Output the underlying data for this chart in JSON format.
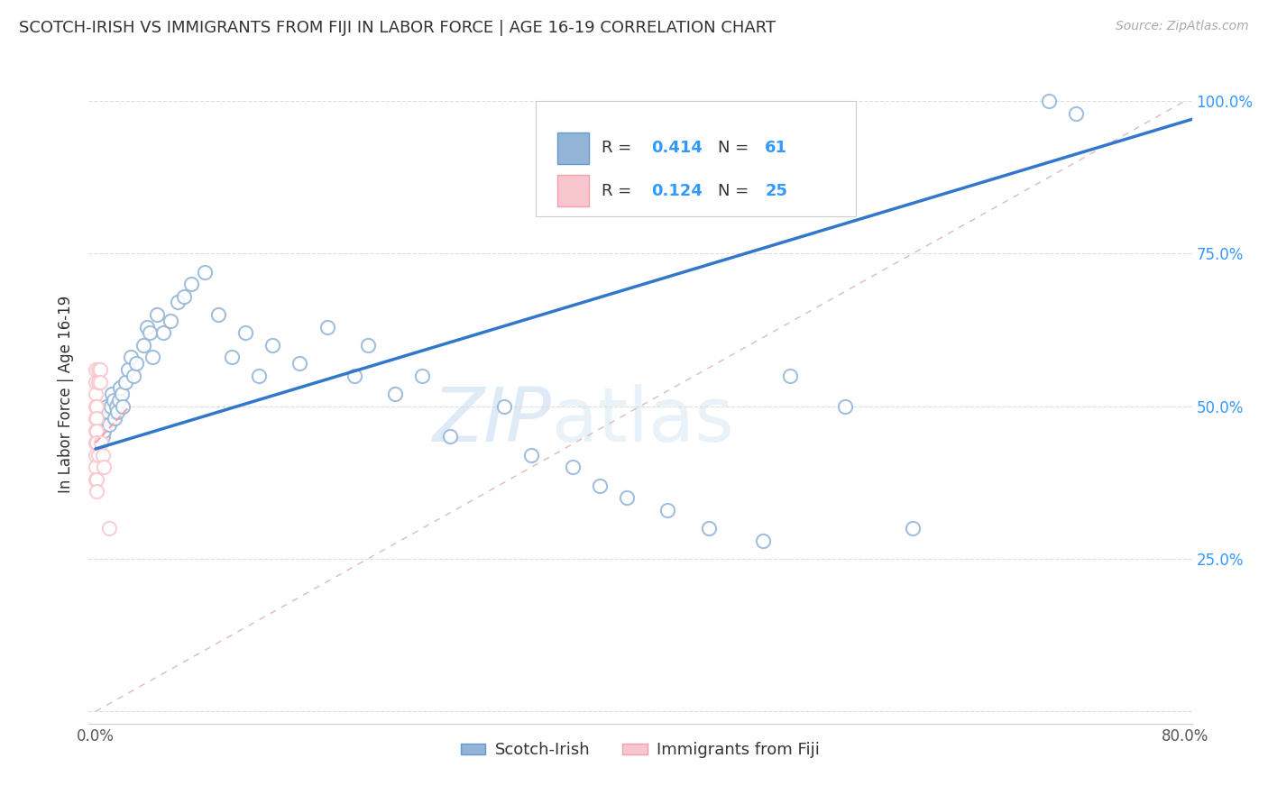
{
  "title": "SCOTCH-IRISH VS IMMIGRANTS FROM FIJI IN LABOR FORCE | AGE 16-19 CORRELATION CHART",
  "source": "Source: ZipAtlas.com",
  "ylabel": "In Labor Force | Age 16-19",
  "watermark": "ZIPatlas",
  "legend1_R": "0.414",
  "legend1_N": "61",
  "legend2_R": "0.124",
  "legend2_N": "25",
  "scotch_irish_color": "#92B4D7",
  "scotch_irish_edge_color": "#6699CC",
  "fiji_color": "#F9C6CE",
  "fiji_edge_color": "#F4A0AE",
  "scotch_irish_line_color": "#3377CC",
  "fiji_line_color": "#F4A0AE",
  "ref_line_color": "#DDBBBB",
  "xlim": [
    -0.005,
    0.805
  ],
  "ylim": [
    -0.02,
    1.06
  ],
  "xtick_positions": [
    0.0,
    0.1,
    0.2,
    0.3,
    0.4,
    0.5,
    0.6,
    0.7,
    0.8
  ],
  "xticklabels": [
    "0.0%",
    "",
    "",
    "",
    "",
    "",
    "",
    "",
    "80.0%"
  ],
  "ytick_positions": [
    0.0,
    0.25,
    0.5,
    0.75,
    1.0
  ],
  "yticklabels_right": [
    "",
    "25.0%",
    "50.0%",
    "75.0%",
    "100.0%"
  ],
  "background_color": "#FFFFFF",
  "grid_color": "#DDDDDD",
  "scotch_irish_x": [
    0.001,
    0.002,
    0.003,
    0.004,
    0.005,
    0.006,
    0.007,
    0.008,
    0.009,
    0.01,
    0.011,
    0.012,
    0.013,
    0.014,
    0.015,
    0.016,
    0.017,
    0.018,
    0.019,
    0.02,
    0.022,
    0.024,
    0.026,
    0.028,
    0.03,
    0.035,
    0.038,
    0.04,
    0.042,
    0.045,
    0.05,
    0.055,
    0.06,
    0.065,
    0.07,
    0.08,
    0.09,
    0.1,
    0.11,
    0.12,
    0.13,
    0.15,
    0.17,
    0.19,
    0.2,
    0.22,
    0.24,
    0.26,
    0.3,
    0.32,
    0.35,
    0.37,
    0.39,
    0.42,
    0.45,
    0.49,
    0.51,
    0.55,
    0.6,
    0.7,
    0.72
  ],
  "scotch_irish_y": [
    0.44,
    0.46,
    0.48,
    0.47,
    0.45,
    0.46,
    0.48,
    0.5,
    0.49,
    0.47,
    0.5,
    0.52,
    0.51,
    0.48,
    0.5,
    0.49,
    0.51,
    0.53,
    0.52,
    0.5,
    0.54,
    0.56,
    0.58,
    0.55,
    0.57,
    0.6,
    0.63,
    0.62,
    0.58,
    0.65,
    0.62,
    0.64,
    0.67,
    0.68,
    0.7,
    0.72,
    0.65,
    0.58,
    0.62,
    0.55,
    0.6,
    0.57,
    0.63,
    0.55,
    0.6,
    0.52,
    0.55,
    0.45,
    0.5,
    0.42,
    0.4,
    0.37,
    0.35,
    0.33,
    0.3,
    0.28,
    0.55,
    0.5,
    0.3,
    1.0,
    0.98
  ],
  "fiji_x": [
    0.0,
    0.0,
    0.0,
    0.0,
    0.0,
    0.0,
    0.0,
    0.0,
    0.0,
    0.0,
    0.001,
    0.001,
    0.001,
    0.001,
    0.001,
    0.001,
    0.002,
    0.002,
    0.002,
    0.003,
    0.003,
    0.004,
    0.005,
    0.006,
    0.01
  ],
  "fiji_y": [
    0.56,
    0.54,
    0.52,
    0.5,
    0.48,
    0.46,
    0.44,
    0.42,
    0.4,
    0.38,
    0.5,
    0.48,
    0.46,
    0.44,
    0.38,
    0.36,
    0.56,
    0.54,
    0.42,
    0.56,
    0.54,
    0.44,
    0.42,
    0.4,
    0.3
  ],
  "scotch_irish_trendline_x": [
    0.0,
    0.805
  ],
  "scotch_irish_trendline_y": [
    0.43,
    0.97
  ],
  "fiji_trendline_x": [
    0.0,
    0.025
  ],
  "fiji_trendline_y": [
    0.44,
    0.5
  ]
}
